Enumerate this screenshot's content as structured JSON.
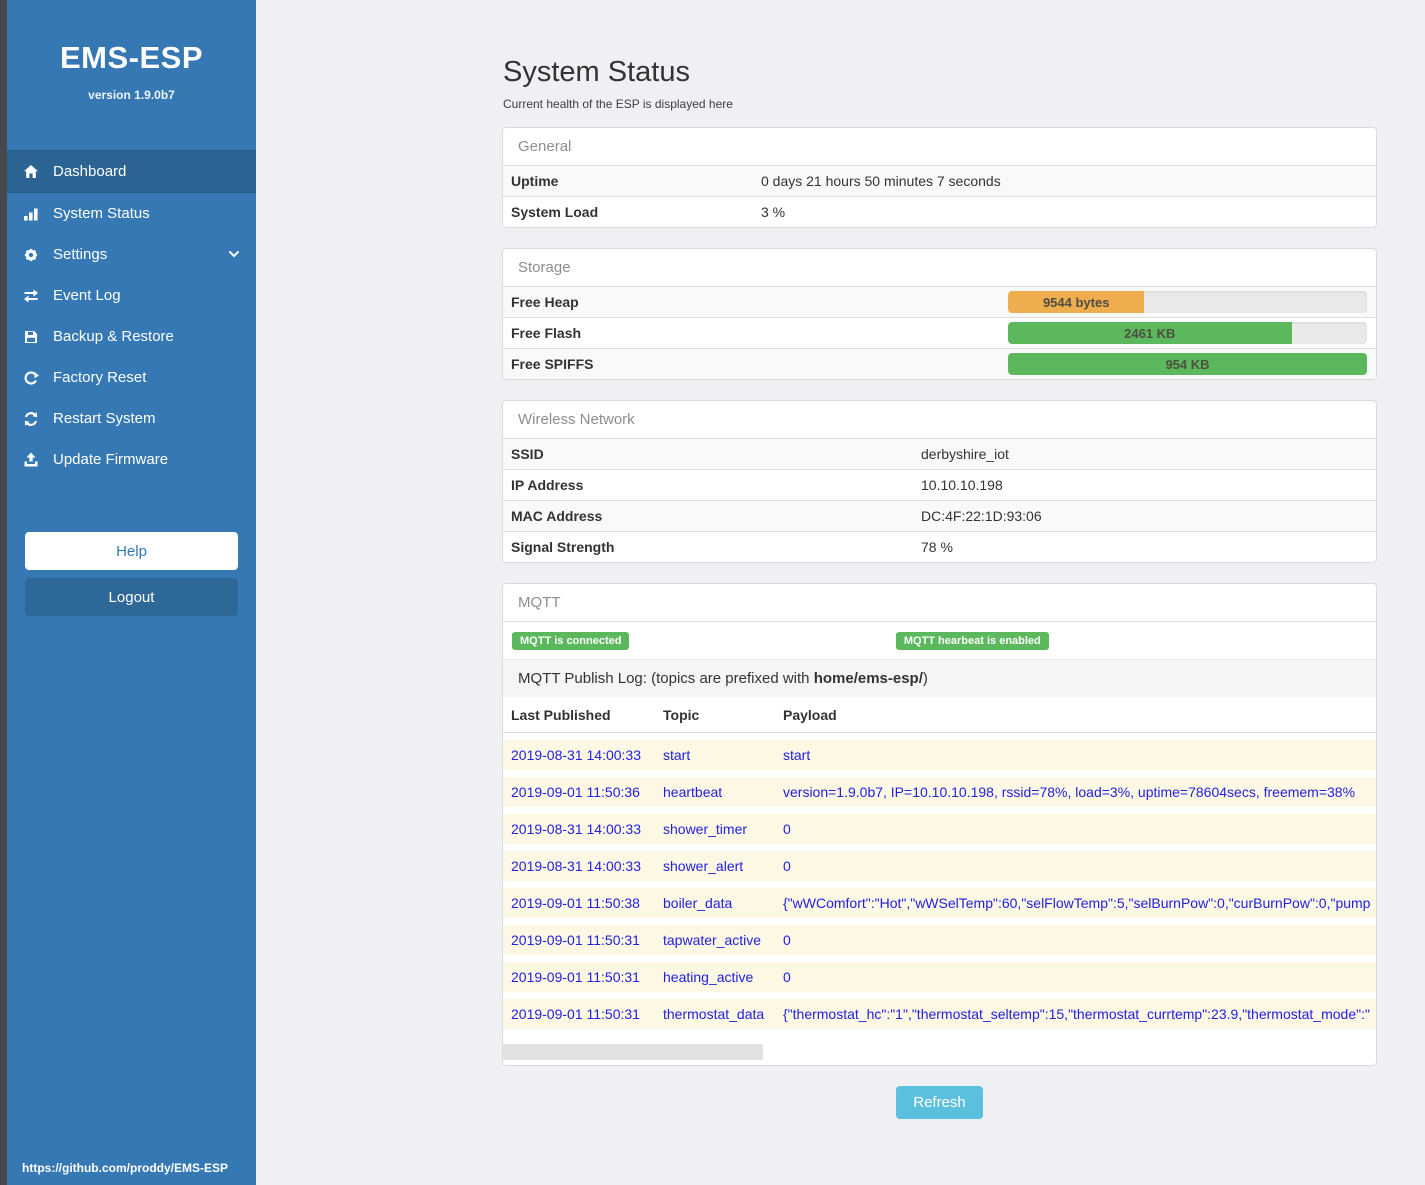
{
  "sidebar": {
    "title": "EMS-ESP",
    "version": "version 1.9.0b7",
    "items": [
      {
        "label": "Dashboard",
        "icon": "home-icon",
        "active": true
      },
      {
        "label": "System Status",
        "icon": "chart-bars-icon",
        "active": false
      },
      {
        "label": "Settings",
        "icon": "gear-icon",
        "active": false,
        "chevron": true
      },
      {
        "label": "Event Log",
        "icon": "exchange-arrows-icon",
        "active": false
      },
      {
        "label": "Backup & Restore",
        "icon": "save-icon",
        "active": false
      },
      {
        "label": "Factory Reset",
        "icon": "rotate-arrow-icon",
        "active": false
      },
      {
        "label": "Restart System",
        "icon": "refresh-arrows-icon",
        "active": false
      },
      {
        "label": "Update Firmware",
        "icon": "upload-icon",
        "active": false
      }
    ],
    "help_label": "Help",
    "logout_label": "Logout",
    "footer_link": "https://github.com/proddy/EMS-ESP"
  },
  "page": {
    "title": "System Status",
    "subtitle": "Current health of the ESP is displayed here"
  },
  "general": {
    "heading": "General",
    "rows": [
      {
        "label": "Uptime",
        "value": "0 days 21 hours 50 minutes 7 seconds"
      },
      {
        "label": "System Load",
        "value": "3 %"
      }
    ]
  },
  "storage": {
    "heading": "Storage",
    "rows": [
      {
        "label": "Free Heap",
        "value": "9544 bytes",
        "percent": 38,
        "color": "#f0ad4e"
      },
      {
        "label": "Free Flash",
        "value": "2461 KB",
        "percent": 79,
        "color": "#5cb85c"
      },
      {
        "label": "Free SPIFFS",
        "value": "954 KB",
        "percent": 100,
        "color": "#5cb85c"
      }
    ]
  },
  "wireless": {
    "heading": "Wireless Network",
    "rows": [
      {
        "label": "SSID",
        "value": "derbyshire_iot"
      },
      {
        "label": "IP Address",
        "value": "10.10.10.198"
      },
      {
        "label": "MAC Address",
        "value": "DC:4F:22:1D:93:06"
      },
      {
        "label": "Signal Strength",
        "value": "78 %"
      }
    ]
  },
  "mqtt": {
    "heading": "MQTT",
    "badges": [
      "MQTT is connected",
      "MQTT hearbeat is enabled"
    ],
    "publish_log": {
      "prefix": "MQTT Publish Log: (topics are prefixed with ",
      "bold": "home/ems-esp/",
      "suffix": ")"
    },
    "table": {
      "headers": [
        "Last Published",
        "Topic",
        "Payload"
      ],
      "rows": [
        [
          "2019-08-31 14:00:33",
          "start",
          "start"
        ],
        [
          "2019-09-01 11:50:36",
          "heartbeat",
          "version=1.9.0b7, IP=10.10.10.198, rssid=78%, load=3%, uptime=78604secs, freemem=38%"
        ],
        [
          "2019-08-31 14:00:33",
          "shower_timer",
          "0"
        ],
        [
          "2019-08-31 14:00:33",
          "shower_alert",
          "0"
        ],
        [
          "2019-09-01 11:50:38",
          "boiler_data",
          "{\"wWComfort\":\"Hot\",\"wWSelTemp\":60,\"selFlowTemp\":5,\"selBurnPow\":0,\"curBurnPow\":0,\"pump"
        ],
        [
          "2019-09-01 11:50:31",
          "tapwater_active",
          "0"
        ],
        [
          "2019-09-01 11:50:31",
          "heating_active",
          "0"
        ],
        [
          "2019-09-01 11:50:31",
          "thermostat_data",
          "{\"thermostat_hc\":\"1\",\"thermostat_seltemp\":15,\"thermostat_currtemp\":23.9,\"thermostat_mode\":\""
        ]
      ]
    }
  },
  "refresh_label": "Refresh",
  "colors": {
    "sidebar_blue": "#3578b4",
    "active_item_blue": "#2b6492",
    "logout_blue": "#2d6899",
    "badge_green": "#5cb85c",
    "bar_orange": "#f0ad4e",
    "bar_green": "#5cb85c",
    "refresh_info_blue": "#5bc0de",
    "log_text_blue": "#2121df",
    "log_row_cream": "#fcf8e3"
  }
}
